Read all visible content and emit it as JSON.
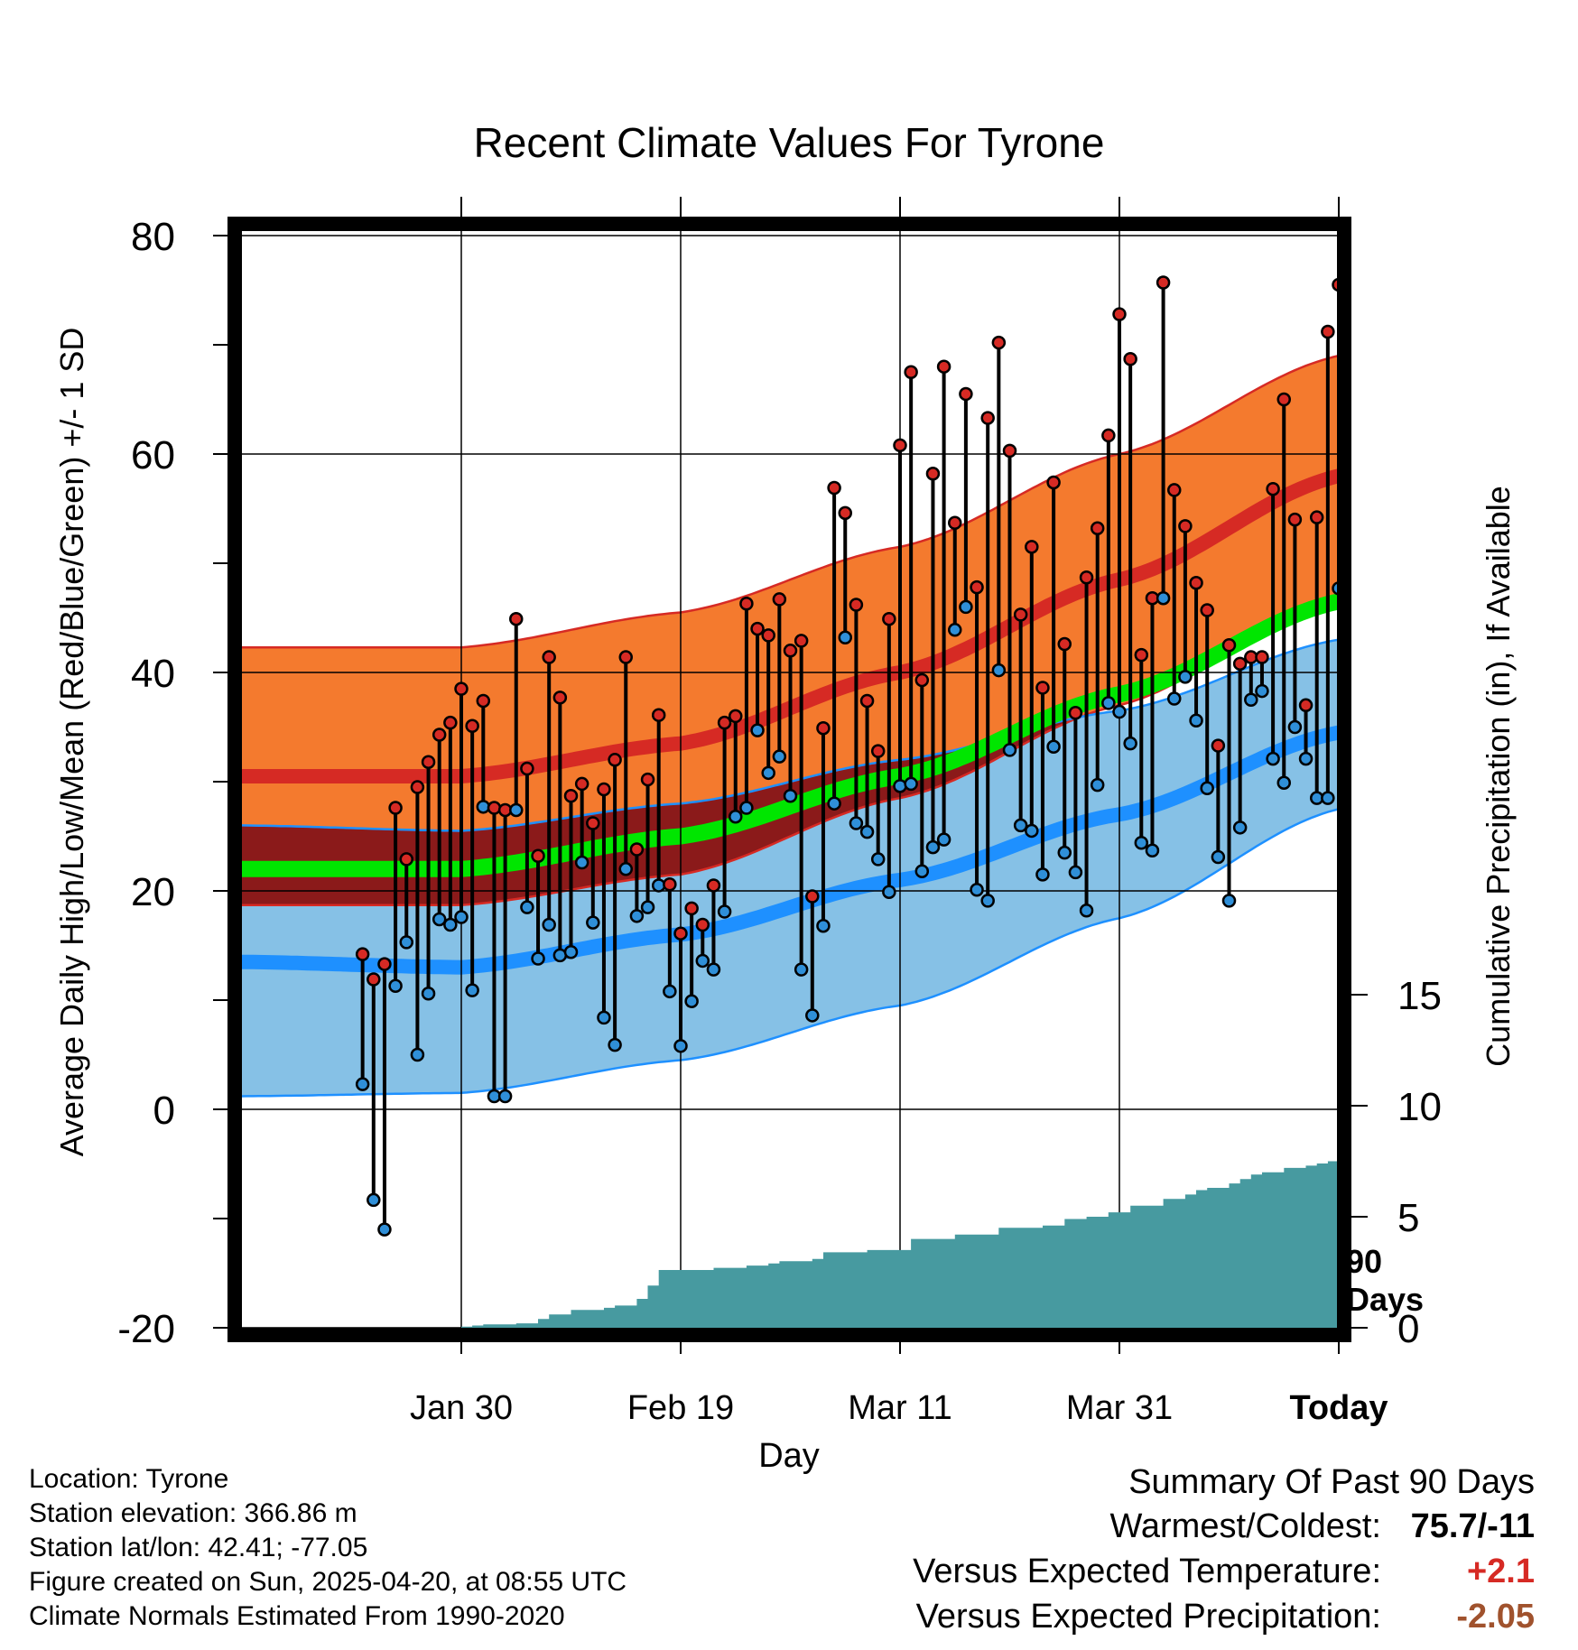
{
  "title": "Recent Climate Values For Tyrone",
  "info": {
    "location": "Location: Tyrone",
    "elevation": "Station elevation: 366.86 m",
    "latlon": "Station lat/lon: 42.41; -77.05",
    "created": "Figure created on Sun, 2025-04-20, at 08:55 UTC",
    "normals": "Climate Normals Estimated From 1990-2020"
  },
  "summary": {
    "title": "Summary Of Past 90 Days",
    "warmest_label": "Warmest/Coldest:",
    "warmest_value": "75.7/-11",
    "temp_label": "Versus Expected Temperature:",
    "temp_value": "+2.1",
    "precip_label": "Versus Expected Precipitation:",
    "precip_value": "-2.05"
  },
  "colors": {
    "high_band": "#f47a2e",
    "high_line": "#d62a24",
    "low_band": "#86c1e6",
    "low_line": "#1e90ff",
    "mean_line": "#00e600",
    "overlap": "#8b1a1a",
    "precip": "#479aa0",
    "obs_high_dot": "#d62a24",
    "obs_low_dot": "#2f8fd8"
  },
  "chart_data": {
    "type": "line",
    "xlabel": "Day",
    "ylabel": "Average Daily High/Low/Mean (Red/Blue/Green) +/- 1 SD",
    "y2label": "Cumulative Precipitation (in), If Available",
    "x_range_days": [
      -100,
      10
    ],
    "ylim": [
      -20,
      80
    ],
    "y_ticks": [
      -20,
      0,
      20,
      40,
      60,
      80
    ],
    "y2lim": [
      0,
      30
    ],
    "y2_ticks": [
      0,
      5,
      10,
      15
    ],
    "x_ticks": [
      {
        "day": -80,
        "label": "Jan 30"
      },
      {
        "day": -60,
        "label": "Feb 19"
      },
      {
        "day": -40,
        "label": "Mar 11"
      },
      {
        "day": -20,
        "label": "Mar 31"
      },
      {
        "day": 0,
        "label": "Today"
      }
    ],
    "marker_label": "90\nDays",
    "normals": {
      "days": [
        -100,
        -80,
        -60,
        -40,
        -20,
        0,
        10
      ],
      "high_mean": [
        30.5,
        30.5,
        33.5,
        40.0,
        48.5,
        58.0,
        62.5
      ],
      "high_upper": [
        42.3,
        42.3,
        45.5,
        51.5,
        60.0,
        69.0,
        73.2
      ],
      "high_lower": [
        18.7,
        18.7,
        21.5,
        28.5,
        37.0,
        47.0,
        52.0
      ],
      "low_mean": [
        13.5,
        13.0,
        16.0,
        21.0,
        27.0,
        34.5,
        38.5
      ],
      "low_upper": [
        26.0,
        25.5,
        28.0,
        32.0,
        36.5,
        43.0,
        46.2
      ],
      "low_lower": [
        1.2,
        1.5,
        4.5,
        9.5,
        17.5,
        27.5,
        31.2
      ],
      "mean": [
        22.0,
        22.0,
        25.0,
        30.5,
        38.0,
        46.5,
        50.5
      ]
    },
    "series": [
      {
        "name": "High",
        "values": [
          14.2,
          11.9,
          13.3,
          27.6,
          22.9,
          29.5,
          31.8,
          34.3,
          35.4,
          38.5,
          35.1,
          37.4,
          27.6,
          27.4,
          44.9,
          31.2,
          23.2,
          41.4,
          37.7,
          28.7,
          29.8,
          26.2,
          29.3,
          32.0,
          41.4,
          23.8,
          30.2,
          36.1,
          20.6,
          16.1,
          18.4,
          16.9,
          20.5,
          35.4,
          36.0,
          46.3,
          44.0,
          43.4,
          46.7,
          42.0,
          42.9,
          19.5,
          34.9,
          56.9,
          54.6,
          46.2,
          37.4,
          32.8,
          44.9,
          60.8,
          67.5,
          39.3,
          58.2,
          68.0,
          53.7,
          65.5,
          47.8,
          63.3,
          70.2,
          60.3,
          45.3,
          51.5,
          38.6,
          57.4,
          42.6,
          36.3,
          48.7,
          53.2,
          61.7,
          72.8,
          68.7,
          41.6,
          46.8,
          75.7,
          56.7,
          53.4,
          48.2,
          45.7,
          33.3,
          42.5,
          40.8,
          41.4,
          41.4,
          56.8,
          65.0,
          54.0,
          37.0,
          54.2,
          71.2,
          75.5
        ]
      },
      {
        "name": "Low",
        "values": [
          2.3,
          -8.3,
          -11.0,
          11.3,
          15.3,
          5.0,
          10.6,
          17.4,
          16.9,
          17.6,
          10.9,
          27.7,
          1.2,
          1.2,
          27.4,
          18.5,
          13.8,
          16.9,
          14.1,
          14.4,
          22.6,
          17.1,
          8.4,
          5.9,
          22.0,
          17.7,
          18.5,
          20.5,
          10.8,
          5.8,
          9.9,
          13.6,
          12.8,
          18.1,
          26.8,
          27.6,
          34.7,
          30.8,
          32.3,
          28.7,
          12.8,
          8.6,
          16.8,
          28.0,
          43.2,
          26.2,
          25.4,
          22.9,
          19.9,
          29.6,
          29.8,
          21.8,
          24.0,
          24.7,
          43.9,
          46.0,
          20.1,
          19.1,
          40.2,
          32.9,
          26.0,
          25.5,
          21.5,
          33.2,
          23.5,
          21.7,
          18.2,
          29.7,
          37.2,
          36.4,
          33.5,
          24.4,
          23.7,
          46.8,
          37.6,
          39.6,
          35.6,
          29.4,
          23.1,
          19.1,
          25.8,
          37.5,
          38.3,
          32.1,
          29.9,
          35.0,
          32.1,
          28.5,
          28.5,
          47.7
        ]
      },
      {
        "name": "Cumulative Precipitation (in)",
        "x": [
          -100,
          -89,
          -84,
          -80,
          -79,
          -78,
          -75,
          -73,
          -72,
          -70,
          -67,
          -66,
          -64,
          -63,
          -62,
          -57,
          -54,
          -52,
          -51,
          -48,
          -47,
          -43,
          -39,
          -35,
          -31,
          -27,
          -25,
          -23,
          -21,
          -19,
          -16,
          -14,
          -13,
          -12,
          -10,
          -9,
          -8,
          -7,
          -5,
          -3,
          -2,
          -1,
          0,
          9
        ],
        "values": [
          0.0,
          0.0,
          0.0,
          0.05,
          0.1,
          0.15,
          0.2,
          0.4,
          0.6,
          0.8,
          0.9,
          1.0,
          1.3,
          1.9,
          2.6,
          2.7,
          2.8,
          2.9,
          3.0,
          3.1,
          3.4,
          3.5,
          4.0,
          4.2,
          4.5,
          4.6,
          4.9,
          5.0,
          5.2,
          5.5,
          5.8,
          6.0,
          6.2,
          6.3,
          6.5,
          6.7,
          6.9,
          7.0,
          7.2,
          7.3,
          7.4,
          7.5,
          7.6,
          7.6
        ]
      }
    ]
  }
}
